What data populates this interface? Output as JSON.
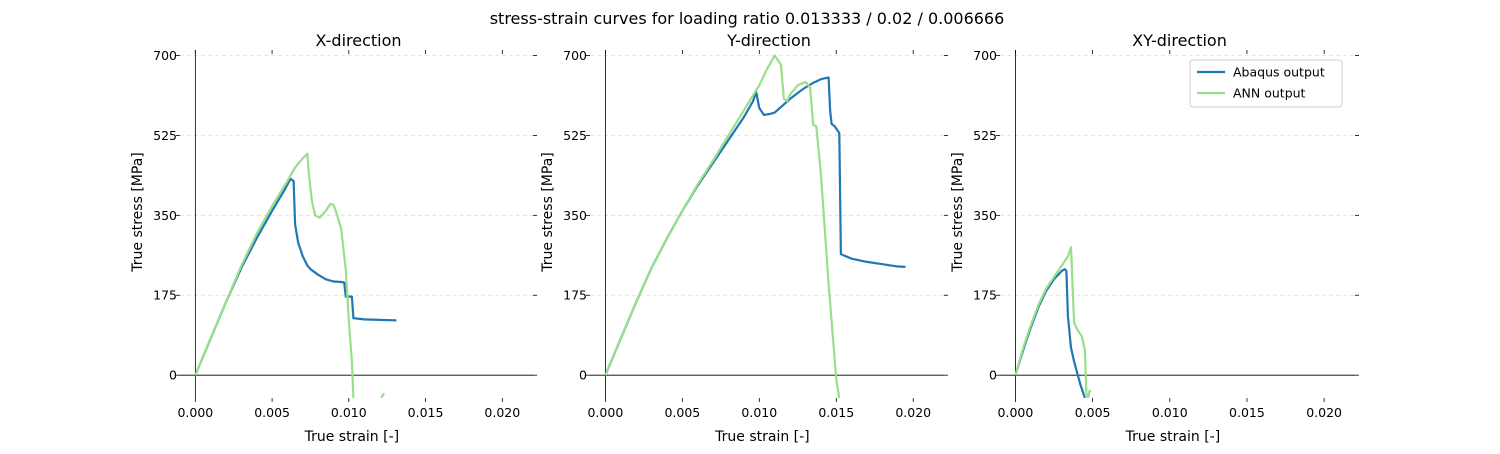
{
  "figure": {
    "suptitle": "stress-strain curves for loading ratio 0.013333 / 0.02 / 0.006666"
  },
  "colors": {
    "abaqus": "#1f77b4",
    "ann": "#98df8a",
    "grid": "#dddddd",
    "axis": "#000000"
  },
  "chart_data": [
    {
      "type": "line",
      "title": "X-direction",
      "xlabel": "True strain [-]",
      "ylabel": "True stress [MPa]",
      "xlim": [
        -0.001,
        0.022
      ],
      "ylim": [
        -50,
        712
      ],
      "xticks": [
        0.0,
        0.005,
        0.01,
        0.015,
        0.02
      ],
      "xtick_labels": [
        "0.000",
        "0.005",
        "0.010",
        "0.015",
        "0.020"
      ],
      "yticks": [
        0,
        175,
        350,
        525,
        700
      ],
      "ytick_labels": [
        "0",
        "175",
        "350",
        "525",
        "700"
      ],
      "grid": "horizontal dashed",
      "series": [
        {
          "name": "Abaqus output",
          "x": [
            0,
            0.001,
            0.002,
            0.003,
            0.004,
            0.005,
            0.0058,
            0.0062,
            0.0064,
            0.0065,
            0.0067,
            0.007,
            0.0073,
            0.0075,
            0.008,
            0.0085,
            0.009,
            0.0095,
            0.0097,
            0.0098,
            0.0099,
            0.01,
            0.0102,
            0.0103,
            0.0105,
            0.011,
            0.012,
            0.0131
          ],
          "y": [
            0,
            80,
            160,
            235,
            300,
            360,
            405,
            430,
            425,
            330,
            290,
            260,
            240,
            232,
            220,
            210,
            205,
            204,
            203,
            172,
            172,
            172,
            172,
            125,
            124,
            122,
            121,
            120
          ]
        },
        {
          "name": "ANN output",
          "x": [
            0,
            0.001,
            0.002,
            0.003,
            0.004,
            0.005,
            0.006,
            0.0065,
            0.007,
            0.0073,
            0.0074,
            0.0076,
            0.0078,
            0.0081,
            0.0085,
            0.0088,
            0.009,
            0.0092,
            0.0095,
            0.0098,
            0.01,
            0.0102,
            0.0103
          ],
          "y": [
            0,
            80,
            160,
            240,
            310,
            370,
            425,
            455,
            475,
            485,
            440,
            380,
            350,
            345,
            360,
            375,
            373,
            355,
            320,
            230,
            120,
            30,
            -50
          ]
        },
        {
          "name": "ANN output",
          "x": [
            0.0121,
            0.0123
          ],
          "y": [
            -50,
            -40
          ]
        }
      ]
    },
    {
      "type": "line",
      "title": "Y-direction",
      "xlabel": "True strain [-]",
      "ylabel": "True stress [MPa]",
      "xlim": [
        -0.001,
        0.022
      ],
      "ylim": [
        -50,
        712
      ],
      "xticks": [
        0.0,
        0.005,
        0.01,
        0.015,
        0.02
      ],
      "xtick_labels": [
        "0.000",
        "0.005",
        "0.010",
        "0.015",
        "0.020"
      ],
      "yticks": [
        0,
        175,
        350,
        525,
        700
      ],
      "ytick_labels": [
        "0",
        "175",
        "350",
        "525",
        "700"
      ],
      "grid": "horizontal dashed",
      "series": [
        {
          "name": "Abaqus output",
          "x": [
            0,
            0.001,
            0.002,
            0.003,
            0.004,
            0.005,
            0.006,
            0.007,
            0.008,
            0.009,
            0.0096,
            0.0098,
            0.01,
            0.0103,
            0.0107,
            0.011,
            0.0115,
            0.012,
            0.0125,
            0.013,
            0.0135,
            0.014,
            0.0145,
            0.0146,
            0.0147,
            0.0149,
            0.0152,
            0.0153,
            0.0155,
            0.016,
            0.017,
            0.018,
            0.019,
            0.0195
          ],
          "y": [
            0,
            80,
            160,
            235,
            300,
            360,
            415,
            465,
            515,
            565,
            600,
            620,
            585,
            570,
            572,
            575,
            590,
            605,
            618,
            630,
            640,
            648,
            652,
            580,
            550,
            545,
            530,
            265,
            262,
            255,
            248,
            243,
            238,
            237
          ]
        },
        {
          "name": "ANN output",
          "x": [
            0,
            0.001,
            0.002,
            0.003,
            0.004,
            0.005,
            0.006,
            0.007,
            0.008,
            0.009,
            0.01,
            0.0105,
            0.011,
            0.0114,
            0.0116,
            0.0118,
            0.012,
            0.0125,
            0.013,
            0.0133,
            0.0135,
            0.0137,
            0.014,
            0.0145,
            0.015,
            0.0152
          ],
          "y": [
            0,
            80,
            160,
            235,
            300,
            360,
            418,
            470,
            525,
            580,
            635,
            670,
            700,
            680,
            605,
            600,
            615,
            635,
            642,
            630,
            548,
            545,
            440,
            200,
            -10,
            -50
          ]
        }
      ]
    },
    {
      "type": "line",
      "title": "XY-direction",
      "xlabel": "True strain [-]",
      "ylabel": "True stress [MPa]",
      "xlim": [
        -0.001,
        0.022
      ],
      "ylim": [
        -50,
        712
      ],
      "xticks": [
        0.0,
        0.005,
        0.01,
        0.015,
        0.02
      ],
      "xtick_labels": [
        "0.000",
        "0.005",
        "0.010",
        "0.015",
        "0.020"
      ],
      "yticks": [
        0,
        175,
        350,
        525,
        700
      ],
      "ytick_labels": [
        "0",
        "175",
        "350",
        "525",
        "700"
      ],
      "grid": "horizontal dashed",
      "legend": "top-right",
      "legend_entries": [
        "Abaqus output",
        "ANN output"
      ],
      "series": [
        {
          "name": "Abaqus output",
          "x": [
            0,
            0.0005,
            0.001,
            0.0015,
            0.002,
            0.0025,
            0.003,
            0.0032,
            0.0033,
            0.0034,
            0.0036,
            0.0038,
            0.004,
            0.0042,
            0.0045
          ],
          "y": [
            0,
            55,
            105,
            150,
            185,
            210,
            228,
            232,
            228,
            130,
            60,
            30,
            5,
            -20,
            -50
          ]
        },
        {
          "name": "ANN output",
          "x": [
            0,
            0.0005,
            0.001,
            0.0015,
            0.002,
            0.0025,
            0.003,
            0.0034,
            0.0036,
            0.0037,
            0.0038,
            0.004,
            0.0043,
            0.0045,
            0.0046,
            0.0047,
            0.0048,
            0.0049
          ],
          "y": [
            0,
            60,
            110,
            155,
            190,
            215,
            240,
            260,
            280,
            200,
            115,
            100,
            85,
            55,
            -40,
            -50,
            -35,
            -35
          ]
        }
      ]
    }
  ]
}
